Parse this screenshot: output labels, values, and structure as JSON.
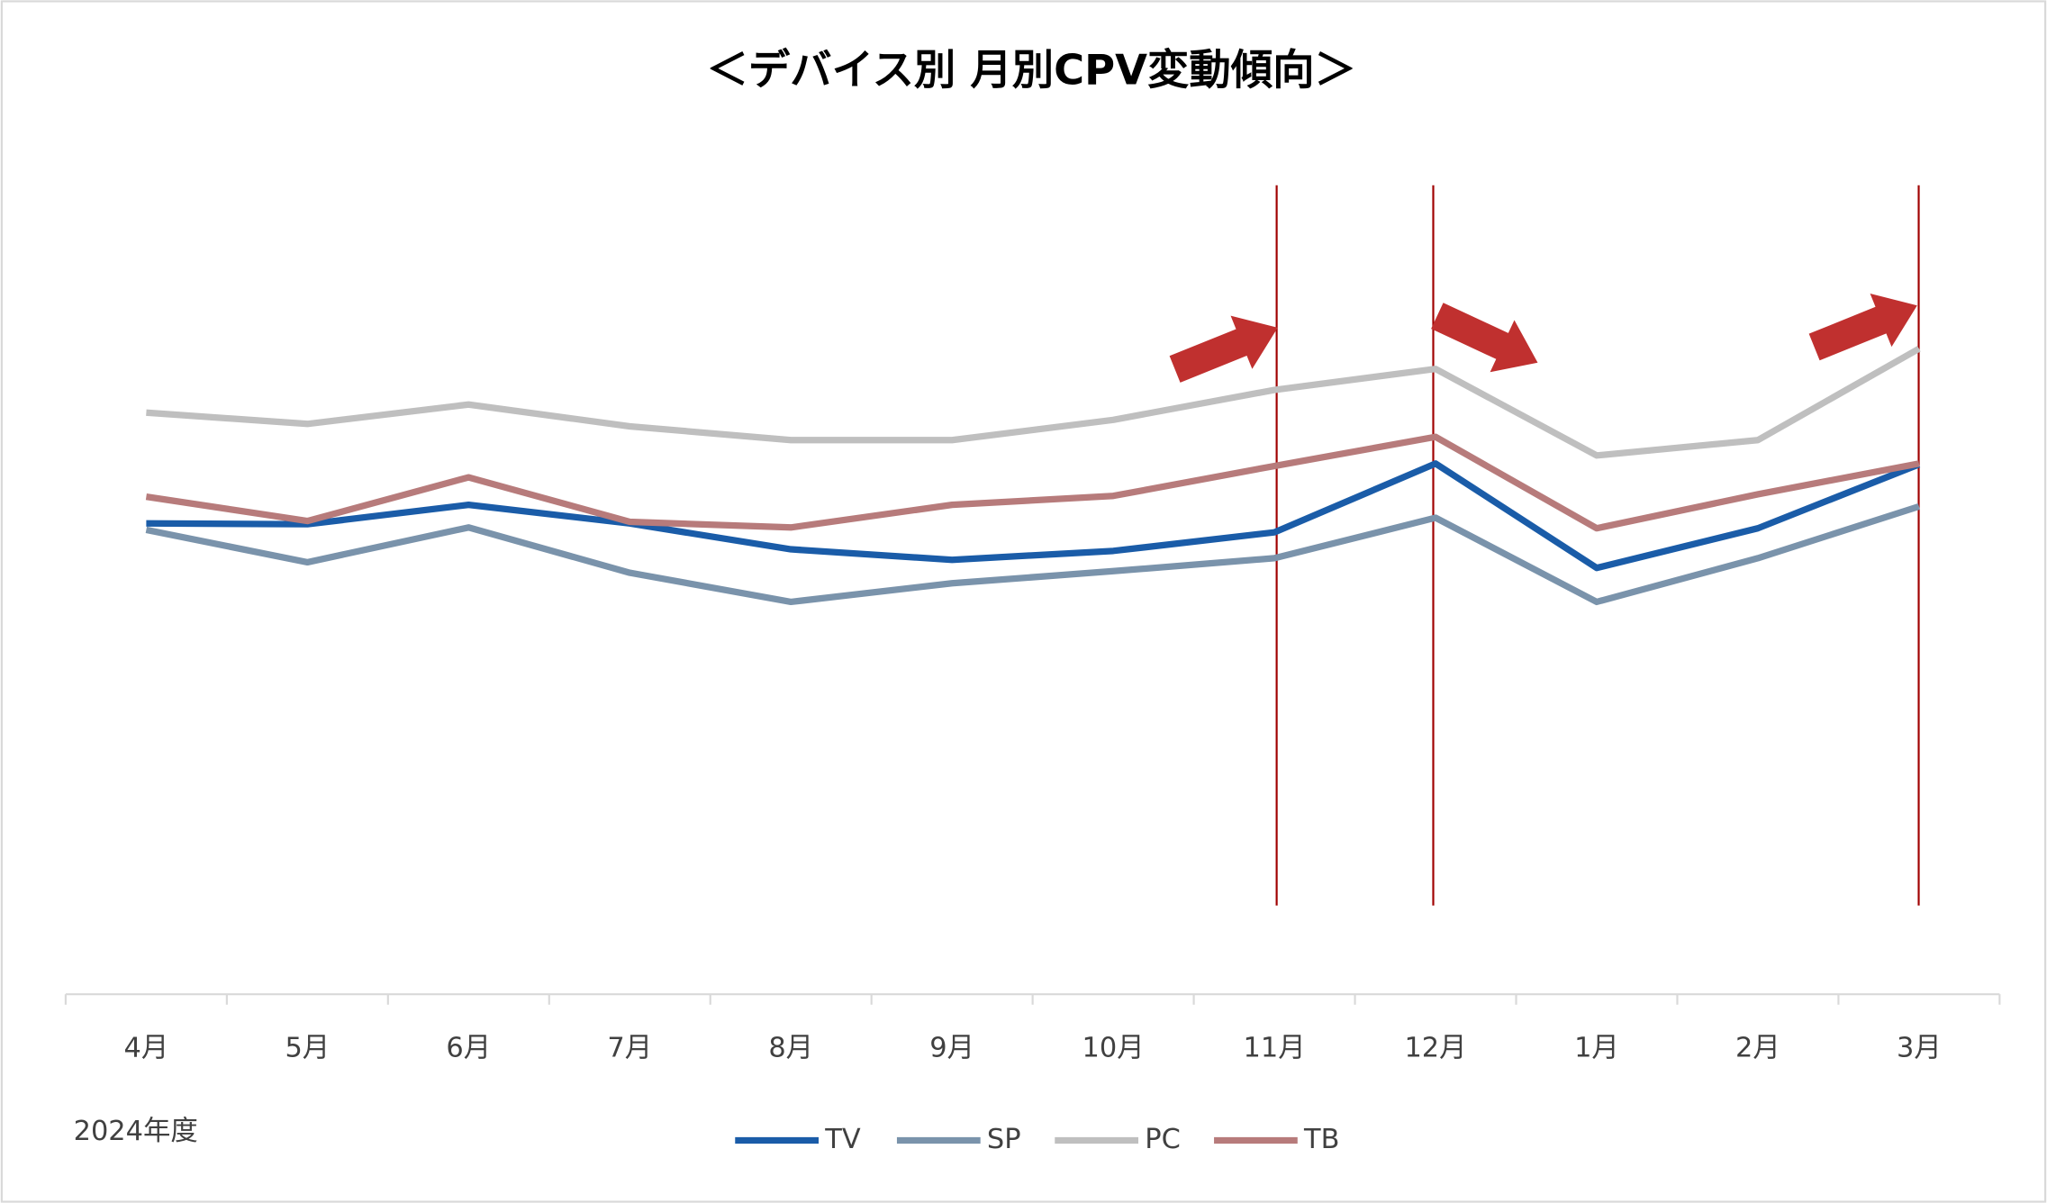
{
  "chart_data": {
    "type": "line",
    "title": "＜デバイス別 月別CPV変動傾向＞",
    "xlabel": "2024年度",
    "categories": [
      "4月",
      "5月",
      "6月",
      "7月",
      "8月",
      "9月",
      "10月",
      "11月",
      "12月",
      "1月",
      "2月",
      "3月"
    ],
    "ylim": [
      0,
      100
    ],
    "series": [
      {
        "name": "TV",
        "color": "#1a5ca8",
        "values": [
          58.2,
          58.1,
          60.5,
          58.2,
          55.0,
          53.7,
          54.8,
          57.1,
          65.6,
          52.7,
          57.6,
          65.5
        ]
      },
      {
        "name": "SP",
        "color": "#7a93ab",
        "values": [
          57.4,
          53.4,
          57.7,
          52.1,
          48.5,
          50.8,
          52.3,
          53.9,
          58.9,
          48.5,
          53.9,
          60.3
        ]
      },
      {
        "name": "PC",
        "color": "#bfbfbf",
        "values": [
          71.9,
          70.5,
          72.9,
          70.2,
          68.5,
          68.5,
          71.0,
          74.7,
          77.3,
          66.6,
          68.5,
          79.8
        ]
      },
      {
        "name": "TB",
        "color": "#b77b7b",
        "values": [
          61.5,
          58.5,
          63.9,
          58.4,
          57.7,
          60.5,
          61.6,
          65.3,
          68.9,
          57.6,
          61.8,
          65.6
        ]
      }
    ],
    "legend": "bottom"
  }
}
